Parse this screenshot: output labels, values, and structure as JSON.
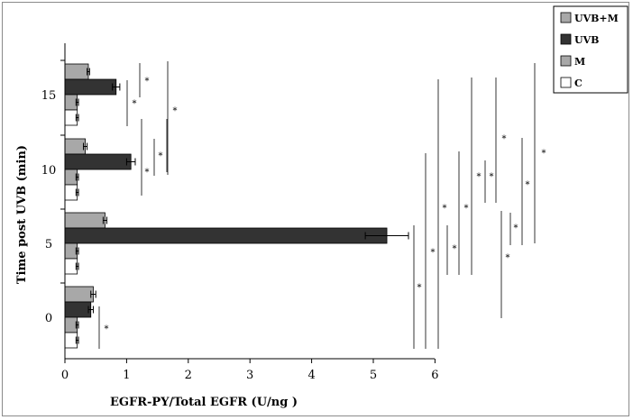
{
  "chart_data": {
    "type": "bar",
    "orientation": "horizontal",
    "title": "",
    "xlabel": "EGFR-PY/Total EGFR  (U/ng )",
    "ylabel": "Time post UVB (min)",
    "xlim": [
      0,
      6
    ],
    "xticks": [
      "0",
      "1",
      "2",
      "3",
      "4",
      "5",
      "6"
    ],
    "categories": [
      "0",
      "5",
      "10",
      "15"
    ],
    "series": [
      {
        "name": "C",
        "color": "#ffffff",
        "values": [
          0.2,
          0.2,
          0.2,
          0.2
        ],
        "errors": [
          0.02,
          0.02,
          0.02,
          0.02
        ]
      },
      {
        "name": "M",
        "color": "#a8a8a8",
        "values": [
          0.2,
          0.2,
          0.2,
          0.2
        ],
        "errors": [
          0.02,
          0.02,
          0.02,
          0.02
        ]
      },
      {
        "name": "UVB",
        "color": "#333333",
        "values": [
          0.42,
          5.22,
          1.07,
          0.83
        ],
        "errors": [
          0.04,
          0.35,
          0.07,
          0.06
        ]
      },
      {
        "name": "UVB+M",
        "color": "#a8a8a8",
        "values": [
          0.46,
          0.65,
          0.33,
          0.38
        ],
        "errors": [
          0.04,
          0.03,
          0.03,
          0.02
        ]
      }
    ],
    "significance_marker": "*",
    "legend_position": "top-right",
    "grid": false
  }
}
